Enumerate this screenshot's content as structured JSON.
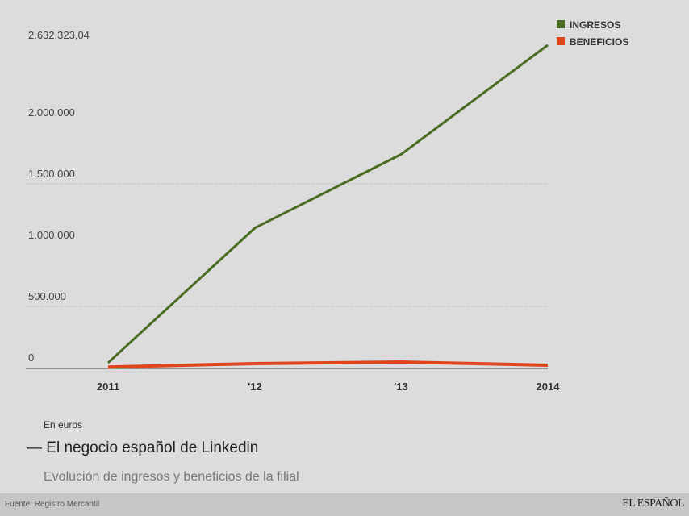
{
  "chart_data": {
    "type": "line",
    "categories": [
      "2011",
      "'12",
      "'13",
      "2014"
    ],
    "series": [
      {
        "name": "INGRESOS",
        "color": "#4a6b22",
        "values": [
          40000,
          1140000,
          1740000,
          2632323.04
        ]
      },
      {
        "name": "BENEFICIOS",
        "color": "#e0441a",
        "values": [
          5000,
          33000,
          46000,
          20000
        ]
      }
    ],
    "y_ticks": [
      {
        "value": 0,
        "label": "0"
      },
      {
        "value": 500000,
        "label": "500.000"
      },
      {
        "value": 1000000,
        "label": "1.000.000"
      },
      {
        "value": 1500000,
        "label": "1.500.000"
      },
      {
        "value": 2000000,
        "label": "2.000.000"
      },
      {
        "value": 2632323.04,
        "label": "2.632.323,04"
      }
    ],
    "dotted_gridlines": [
      500000,
      1500000
    ],
    "ylim": [
      0,
      2632323.04
    ],
    "legend_position": "top-right",
    "unit_label": "En euros",
    "title": "El negocio español de Linkedin",
    "subtitle": "Evolución de ingresos y beneficios de la filial"
  },
  "footer": {
    "source": "Fuente: Registro Mercantil",
    "logo": "EL ESPAÑOL"
  }
}
